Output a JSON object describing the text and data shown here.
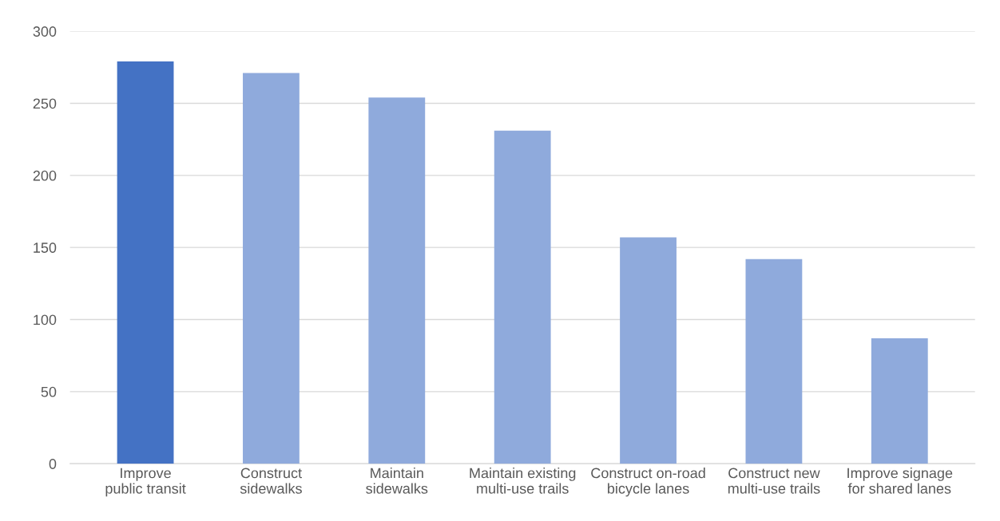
{
  "chart_data": {
    "type": "bar",
    "categories": [
      "Improve public transit",
      "Construct sidewalks",
      "Maintain sidewalks",
      "Maintain existing multi-use trails",
      "Construct on-road bicycle lanes",
      "Construct new multi-use trails",
      "Improve signage for shared lanes"
    ],
    "values": [
      279,
      271,
      254,
      231,
      157,
      142,
      87
    ],
    "colors": [
      "#4472c4",
      "#8faadc",
      "#8faadc",
      "#8faadc",
      "#8faadc",
      "#8faadc",
      "#8faadc"
    ],
    "ylim": [
      0,
      300
    ],
    "yticks": [
      0,
      50,
      100,
      150,
      200,
      250,
      300
    ],
    "grid": "y"
  }
}
